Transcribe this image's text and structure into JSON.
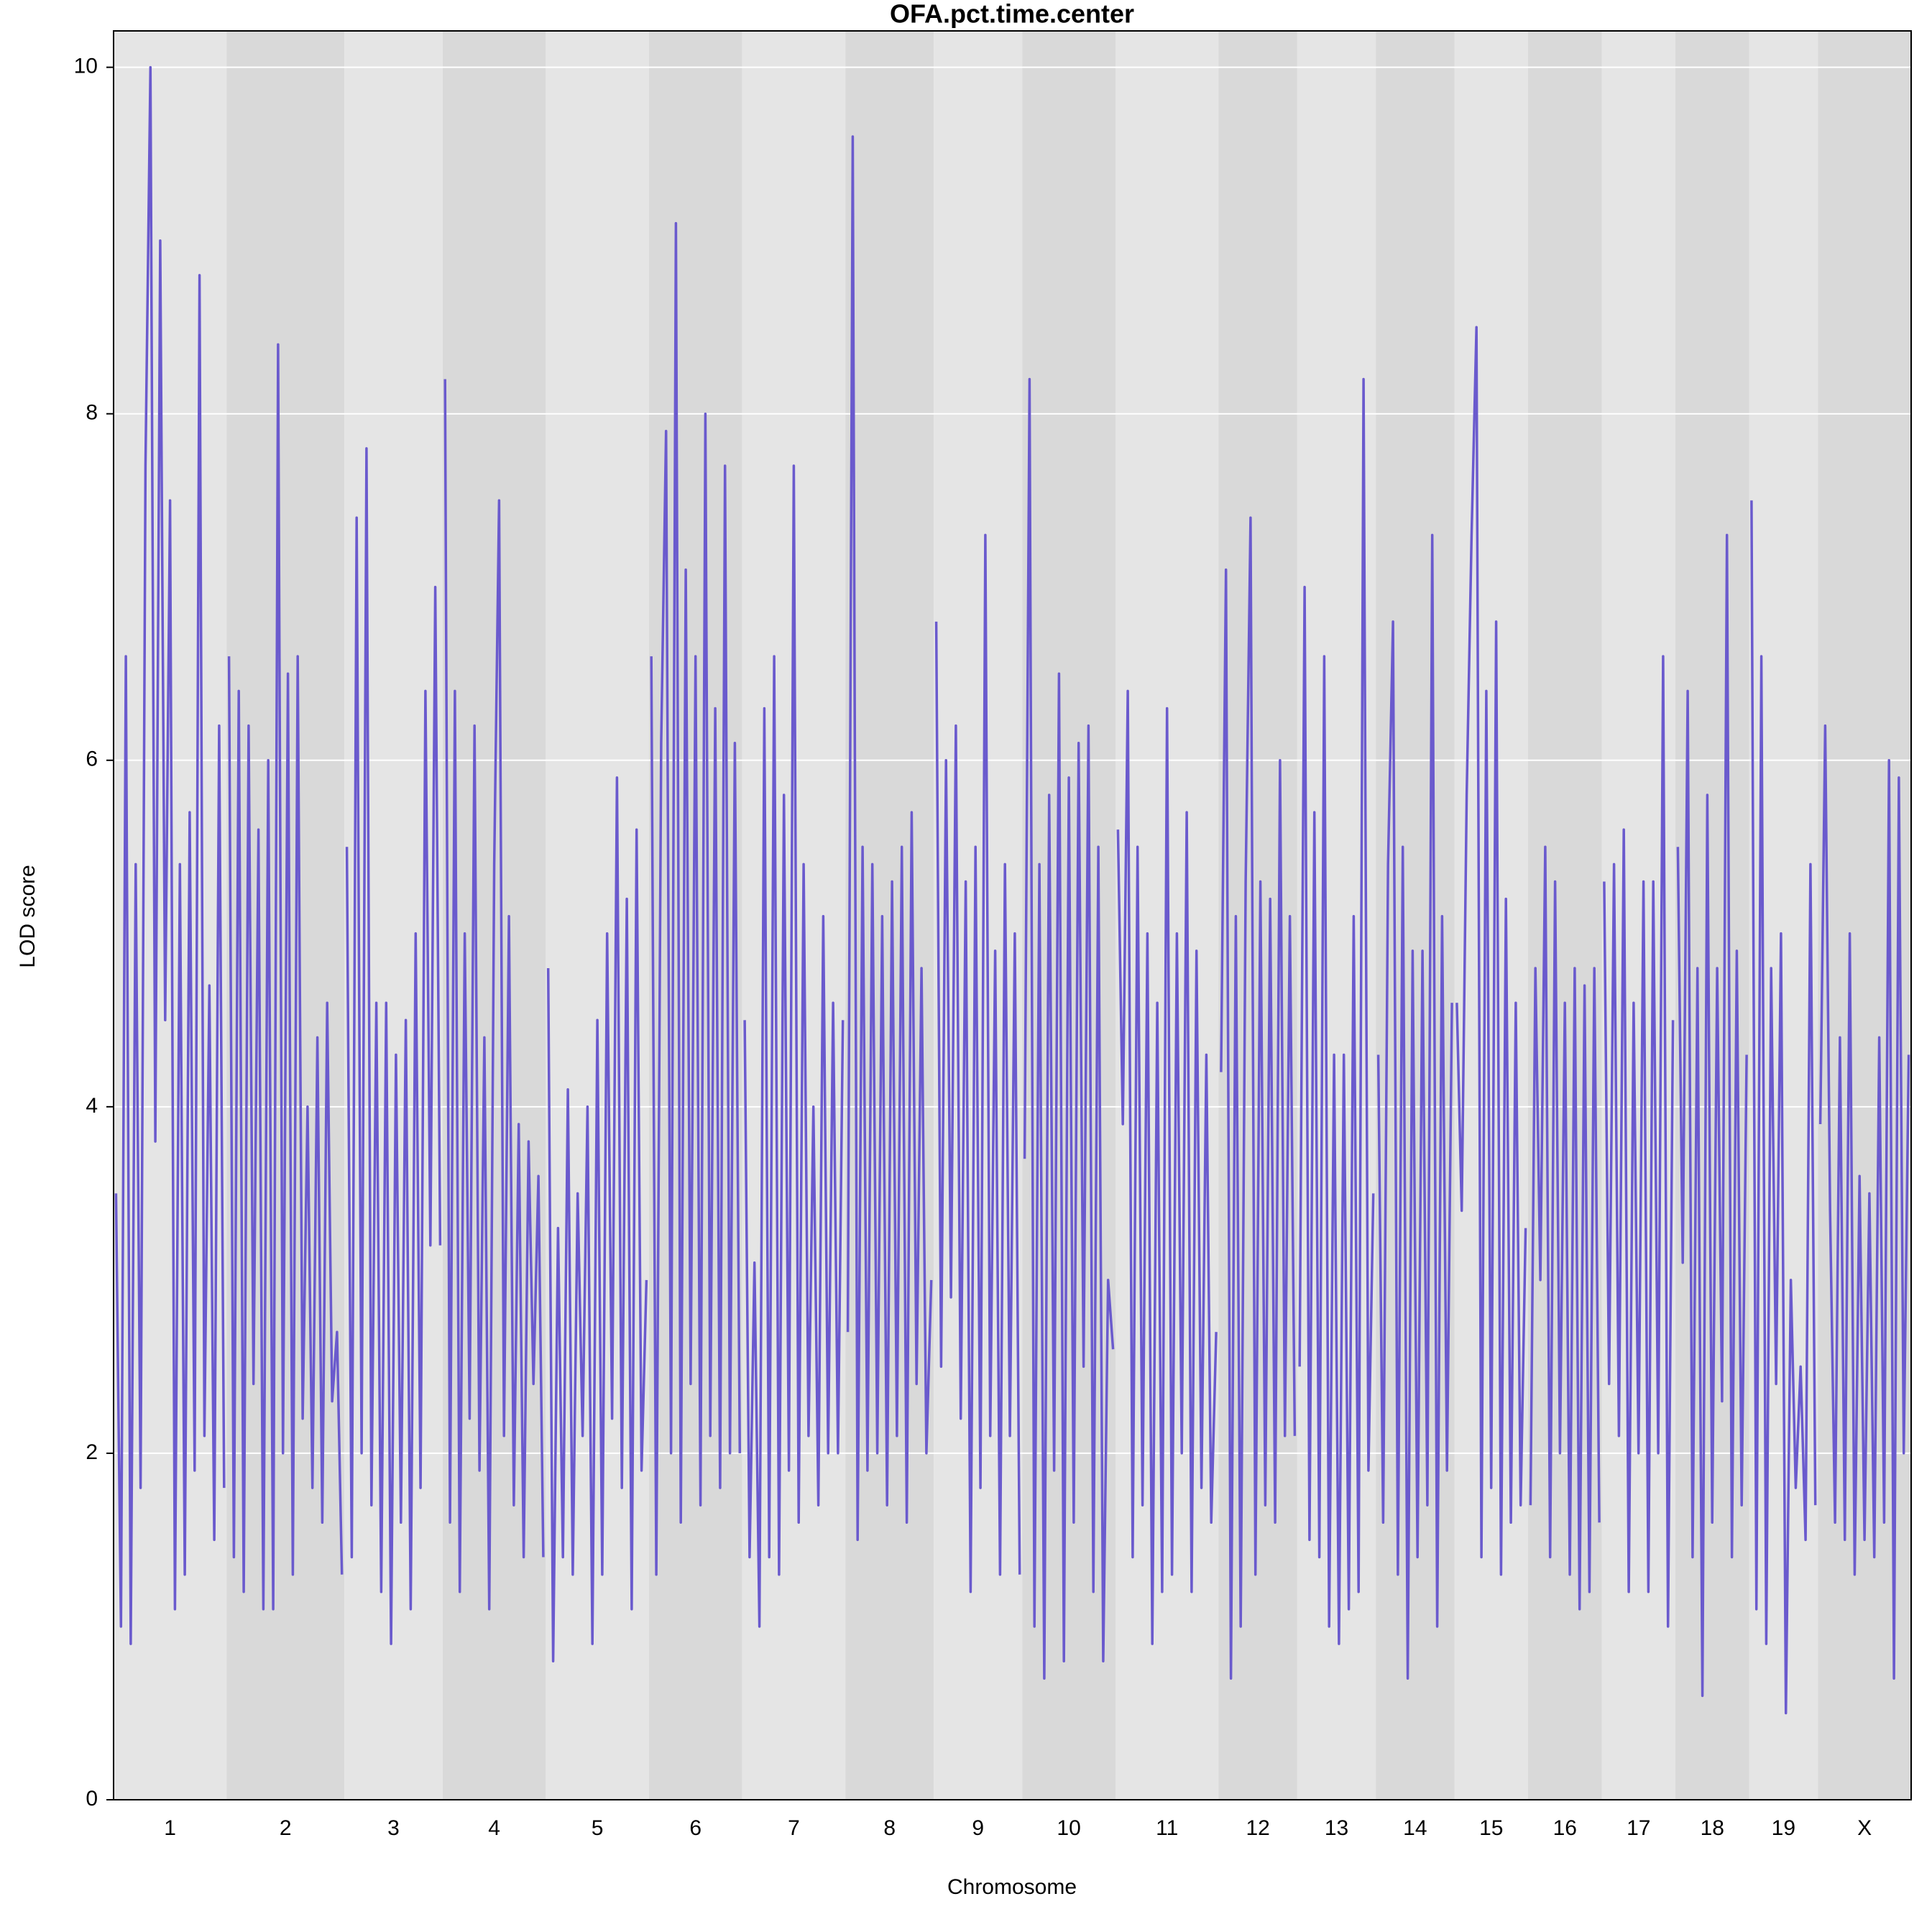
{
  "chart_data": {
    "type": "line",
    "title": "OFA.pct.time.center",
    "x_label": "Chromosome",
    "y_label": "LOD score",
    "categories": [
      "1",
      "2",
      "3",
      "4",
      "5",
      "6",
      "7",
      "8",
      "9",
      "10",
      "11",
      "12",
      "13",
      "14",
      "15",
      "16",
      "17",
      "18",
      "19",
      "X"
    ],
    "values": [
      [
        3.5,
        1.0,
        6.6,
        0.9,
        5.4,
        1.8,
        7.7,
        10.0,
        3.8,
        9.0,
        4.5,
        7.5,
        1.1,
        5.4,
        1.3,
        5.7,
        1.9,
        8.8,
        2.1,
        4.7,
        1.5,
        6.2,
        1.8
      ],
      [
        6.6,
        1.4,
        6.4,
        1.2,
        6.2,
        2.4,
        5.6,
        1.1,
        6.0,
        1.1,
        8.4,
        2.0,
        6.5,
        1.3,
        6.6,
        2.2,
        4.0,
        1.8,
        4.4,
        1.6,
        4.6,
        2.3,
        2.7,
        1.3
      ],
      [
        5.5,
        1.4,
        7.4,
        2.0,
        7.8,
        1.7,
        4.6,
        1.2,
        4.6,
        0.9,
        4.3,
        1.6,
        4.5,
        1.1,
        5.0,
        1.8,
        6.4,
        3.2,
        7.0,
        3.2
      ],
      [
        8.2,
        1.6,
        6.4,
        1.2,
        5.0,
        2.2,
        6.2,
        1.9,
        4.4,
        1.1,
        5.4,
        7.5,
        2.1,
        5.1,
        1.7,
        3.9,
        1.4,
        3.8,
        2.4,
        3.6,
        1.4
      ],
      [
        4.8,
        0.8,
        3.3,
        1.4,
        4.1,
        1.3,
        3.5,
        2.1,
        4.0,
        0.9,
        4.5,
        1.3,
        5.0,
        2.2,
        5.9,
        1.8,
        5.2,
        1.1,
        5.6,
        1.9,
        3.0
      ],
      [
        6.6,
        1.3,
        6.1,
        7.9,
        2.0,
        9.1,
        1.6,
        7.1,
        2.4,
        6.6,
        1.7,
        8.0,
        2.1,
        6.3,
        1.8,
        7.7,
        2.0,
        6.1,
        2.0
      ],
      [
        4.5,
        1.4,
        3.1,
        1.0,
        6.3,
        1.4,
        6.6,
        1.3,
        5.8,
        1.9,
        7.7,
        1.6,
        5.4,
        2.1,
        4.0,
        1.7,
        5.1,
        2.0,
        4.6,
        2.0,
        4.5
      ],
      [
        2.7,
        9.6,
        1.5,
        5.5,
        1.9,
        5.4,
        2.0,
        5.1,
        1.7,
        5.3,
        2.1,
        5.5,
        1.6,
        5.7,
        2.4,
        4.8,
        2.0,
        3.0
      ],
      [
        6.8,
        2.5,
        6.0,
        2.9,
        6.2,
        2.2,
        5.3,
        1.2,
        5.5,
        1.8,
        7.3,
        2.1,
        4.9,
        1.3,
        5.4,
        2.1,
        5.0,
        1.3
      ],
      [
        3.7,
        8.2,
        1.0,
        5.4,
        0.7,
        5.8,
        1.9,
        6.5,
        0.8,
        5.9,
        1.6,
        6.1,
        2.5,
        6.2,
        1.2,
        5.5,
        0.8,
        3.0,
        2.6
      ],
      [
        5.6,
        3.9,
        6.4,
        1.4,
        5.5,
        1.7,
        5.0,
        0.9,
        4.6,
        1.2,
        6.3,
        1.3,
        5.0,
        2.0,
        5.7,
        1.2,
        4.9,
        1.8,
        4.3,
        1.6,
        2.7
      ],
      [
        4.2,
        7.1,
        0.7,
        5.1,
        1.0,
        5.3,
        7.4,
        1.3,
        5.3,
        1.7,
        5.2,
        1.6,
        6.0,
        2.1,
        5.1,
        2.1
      ],
      [
        2.5,
        7.0,
        1.5,
        5.7,
        1.4,
        6.6,
        1.0,
        4.3,
        0.9,
        4.3,
        1.1,
        5.1,
        1.2,
        8.2,
        1.9,
        3.5
      ],
      [
        4.3,
        1.6,
        5.4,
        6.8,
        1.3,
        5.5,
        0.7,
        4.9,
        1.4,
        4.9,
        1.7,
        7.3,
        1.0,
        5.1,
        1.9,
        4.6
      ],
      [
        4.6,
        3.4,
        5.8,
        7.3,
        8.5,
        1.4,
        6.4,
        1.8,
        6.8,
        1.3,
        5.2,
        1.6,
        4.6,
        1.7,
        3.3
      ],
      [
        1.7,
        4.8,
        3.0,
        5.5,
        1.4,
        5.3,
        2.0,
        4.6,
        1.3,
        4.8,
        1.1,
        4.7,
        1.2,
        4.8,
        1.6
      ],
      [
        5.3,
        2.4,
        5.4,
        2.1,
        5.6,
        1.2,
        4.6,
        2.0,
        5.3,
        1.2,
        5.3,
        2.0,
        6.6,
        1.0,
        4.5
      ],
      [
        5.5,
        3.1,
        6.4,
        1.4,
        4.8,
        0.6,
        5.8,
        1.6,
        4.8,
        2.3,
        7.3,
        1.4,
        4.9,
        1.7,
        4.3
      ],
      [
        7.5,
        1.1,
        6.6,
        0.9,
        4.8,
        2.4,
        5.0,
        0.5,
        3.0,
        1.8,
        2.5,
        1.5,
        5.4,
        1.7
      ],
      [
        3.9,
        6.2,
        3.4,
        1.6,
        4.4,
        1.5,
        5.0,
        1.3,
        3.6,
        1.5,
        3.5,
        1.4,
        4.4,
        1.6,
        6.0,
        0.7,
        5.9,
        2.0,
        4.3
      ]
    ],
    "color": "#6a5acd",
    "band_colors": [
      "#e5e5e5",
      "#d9d9d9"
    ],
    "ylim": [
      0,
      10.21
    ],
    "yticks": [
      0,
      2,
      4,
      6,
      8,
      10
    ],
    "grid": true
  }
}
